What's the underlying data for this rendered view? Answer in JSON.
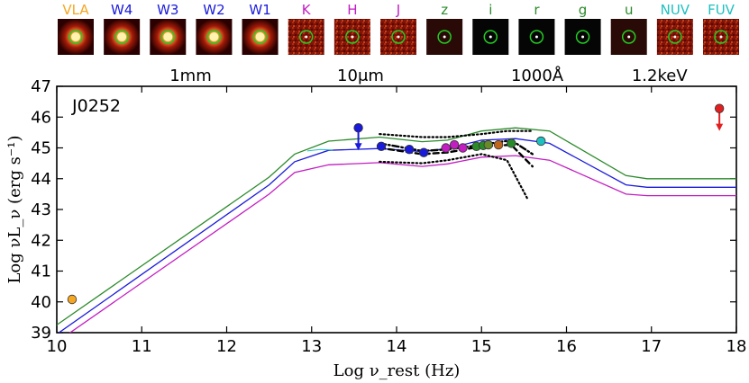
{
  "chart_data": {
    "type": "line",
    "title": "J0252",
    "xlabel": "Log ν_rest (Hz)",
    "ylabel": "Log νL_ν (erg s⁻¹)",
    "xlim": [
      10,
      18
    ],
    "ylim": [
      39,
      47
    ],
    "xticks": [
      "10",
      "11",
      "12",
      "13",
      "14",
      "15",
      "16",
      "17",
      "18"
    ],
    "yticks": [
      "39",
      "40",
      "41",
      "42",
      "43",
      "44",
      "45",
      "46",
      "47"
    ],
    "wavelength_scale": [
      {
        "x": 12.5,
        "label": "1mm"
      },
      {
        "x": 13.5,
        "label": "10μm"
      },
      {
        "x": 14.5,
        "label": "1000Å"
      },
      {
        "x": 17.4,
        "label": "1.2keV"
      }
    ],
    "bands": [
      {
        "label": "VLA",
        "color": "#f5a623"
      },
      {
        "label": "W4",
        "color": "#1a1adb"
      },
      {
        "label": "W3",
        "color": "#1a1adb"
      },
      {
        "label": "W2",
        "color": "#1a1adb"
      },
      {
        "label": "W1",
        "color": "#1a1adb"
      },
      {
        "label": "K",
        "color": "#c21ec2"
      },
      {
        "label": "H",
        "color": "#c21ec2"
      },
      {
        "label": "J",
        "color": "#c21ec2"
      },
      {
        "label": "z",
        "color": "#2a8a2a"
      },
      {
        "label": "i",
        "color": "#2a8a2a"
      },
      {
        "label": "r",
        "color": "#2a8a2a"
      },
      {
        "label": "g",
        "color": "#2a8a2a"
      },
      {
        "label": "u",
        "color": "#2a8a2a"
      },
      {
        "label": "NUV",
        "color": "#1fc0c0"
      },
      {
        "label": "FUV",
        "color": "#1fc0c0"
      }
    ],
    "series": [
      {
        "name": "model-upper",
        "color": "#2a8a2a",
        "x": [
          10,
          12.5,
          12.8,
          13.2,
          13.8,
          14.3,
          14.6,
          15.0,
          15.4,
          15.8,
          16.7,
          16.95,
          18
        ],
        "y": [
          39.25,
          44.05,
          44.8,
          45.22,
          45.35,
          45.2,
          45.25,
          45.55,
          45.65,
          45.55,
          44.1,
          44.0,
          44.0
        ]
      },
      {
        "name": "model-mid",
        "color": "#1a1adb",
        "x": [
          10,
          12.5,
          12.8,
          13.2,
          13.8,
          14.3,
          14.6,
          15.0,
          15.4,
          15.8,
          16.7,
          16.95,
          18
        ],
        "y": [
          38.95,
          43.8,
          44.55,
          44.92,
          44.98,
          44.88,
          44.98,
          45.25,
          45.3,
          45.15,
          43.8,
          43.72,
          43.72
        ]
      },
      {
        "name": "model-lower",
        "color": "#c21ec2",
        "x": [
          10,
          12.5,
          12.8,
          13.2,
          13.8,
          14.3,
          14.6,
          15.0,
          15.4,
          15.8,
          16.7,
          16.95,
          18
        ],
        "y": [
          38.7,
          43.5,
          44.2,
          44.45,
          44.52,
          44.4,
          44.48,
          44.7,
          44.75,
          44.6,
          43.5,
          43.45,
          43.45
        ]
      }
    ],
    "photometry": [
      {
        "band": "VLA",
        "x": 10.18,
        "y": 40.08,
        "color": "#f5a623"
      },
      {
        "band": "W4",
        "x": 13.55,
        "y": 45.65,
        "color": "#1a1adb",
        "upper_limit": true
      },
      {
        "band": "W3",
        "x": 13.82,
        "y": 45.05,
        "color": "#1a1adb"
      },
      {
        "band": "W2",
        "x": 14.15,
        "y": 44.95,
        "color": "#1a1adb"
      },
      {
        "band": "W1",
        "x": 14.32,
        "y": 44.85,
        "color": "#1a1adb"
      },
      {
        "band": "K",
        "x": 14.58,
        "y": 45.0,
        "color": "#c21ec2"
      },
      {
        "band": "H",
        "x": 14.68,
        "y": 45.1,
        "color": "#c21ec2"
      },
      {
        "band": "J",
        "x": 14.78,
        "y": 45.0,
        "color": "#c21ec2"
      },
      {
        "band": "z",
        "x": 14.94,
        "y": 45.05,
        "color": "#2a8a2a"
      },
      {
        "band": "i",
        "x": 15.02,
        "y": 45.08,
        "color": "#2a8a2a"
      },
      {
        "band": "r",
        "x": 15.08,
        "y": 45.1,
        "color": "#6a8a2a"
      },
      {
        "band": "g",
        "x": 15.2,
        "y": 45.1,
        "color": "#c0661a"
      },
      {
        "band": "u",
        "x": 15.35,
        "y": 45.15,
        "color": "#2a8a2a"
      },
      {
        "band": "NUV",
        "x": 15.7,
        "y": 45.22,
        "color": "#1fc0c0"
      },
      {
        "band": "X-ray",
        "x": 17.8,
        "y": 46.28,
        "color": "#e02020",
        "upper_limit": true
      }
    ],
    "templates": [
      {
        "name": "dotted-upper",
        "style": "dotted",
        "x": [
          13.8,
          14.3,
          14.6,
          15.0,
          15.3,
          15.6
        ],
        "y": [
          45.45,
          45.35,
          45.35,
          45.45,
          45.55,
          45.55
        ]
      },
      {
        "name": "dotted-lower",
        "style": "dotted",
        "x": [
          13.8,
          14.3,
          14.6,
          15.0,
          15.3,
          15.55
        ],
        "y": [
          44.55,
          44.5,
          44.6,
          44.8,
          44.6,
          43.3
        ]
      },
      {
        "name": "dashed",
        "style": "dashed",
        "x": [
          13.8,
          14.3,
          14.6,
          15.0,
          15.35,
          15.6
        ],
        "y": [
          45.0,
          44.8,
          44.85,
          45.05,
          45.1,
          44.4
        ]
      },
      {
        "name": "dashdot",
        "style": "dashdot",
        "x": [
          13.8,
          14.3,
          14.6,
          15.0,
          15.35,
          15.6
        ],
        "y": [
          45.15,
          44.9,
          44.95,
          45.1,
          45.25,
          44.8
        ]
      }
    ]
  }
}
